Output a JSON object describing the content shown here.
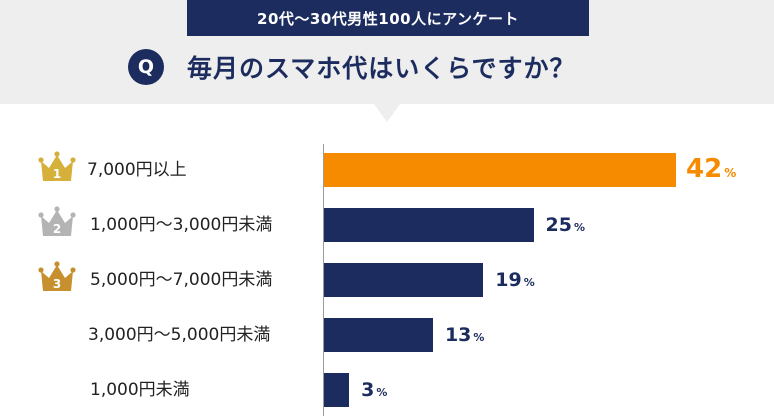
{
  "header": {
    "survey_label": "20代〜30代男性100人にアンケート",
    "question_badge": "Q",
    "question": "毎月のスマホ代はいくらですか？"
  },
  "colors": {
    "navy": "#1c2c5e",
    "orange": "#f68b00",
    "gold": "#d5b13b",
    "silver": "#b4b4b4",
    "bronze": "#c7902e"
  },
  "ranks": [
    {
      "rank": "1",
      "icon": "gold-crown-icon",
      "color": "#d5b13b"
    },
    {
      "rank": "2",
      "icon": "silver-crown-icon",
      "color": "#b4b4b4"
    },
    {
      "rank": "3",
      "icon": "bronze-crown-icon",
      "color": "#c7902e"
    }
  ],
  "chart_data": {
    "type": "bar",
    "orientation": "horizontal",
    "title": "毎月のスマホ代はいくらですか？",
    "categories": [
      "7,000円以上",
      "1,000円〜3,000円未満",
      "5,000円〜7,000円未満",
      "3,000円〜5,000円未満",
      "1,000円未満"
    ],
    "values": [
      42,
      25,
      19,
      13,
      3
    ],
    "value_labels": [
      "42",
      "25",
      "19",
      "13",
      "3"
    ],
    "unit": "%",
    "xlim": [
      0,
      50
    ],
    "highlight_index": 0,
    "xlabel": "",
    "ylabel": "",
    "grid": false
  }
}
